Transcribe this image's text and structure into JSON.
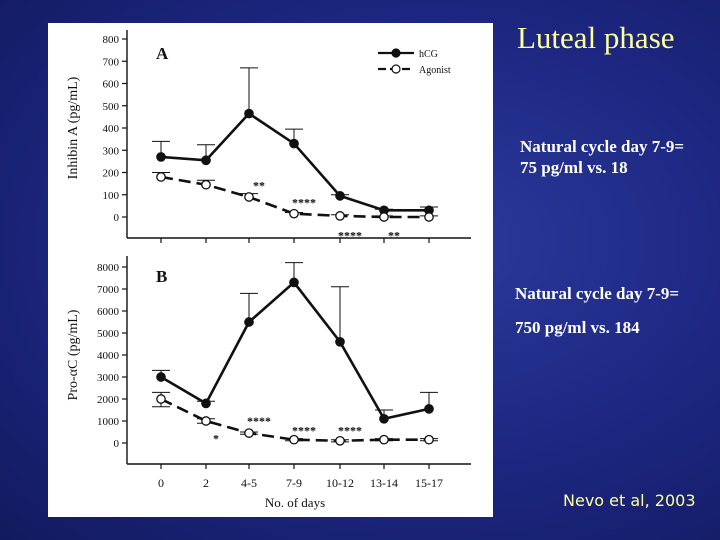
{
  "slide": {
    "title": "Luteal phase",
    "note_1": [
      "Natural cycle day 7-9=",
      "75 pg/ml vs. 18"
    ],
    "note_2": [
      "Natural cycle day 7-9=",
      "750 pg/ml vs. 184"
    ],
    "citation": "Nevo et al, 2003"
  },
  "colors": {
    "background": "#1c2680",
    "title": "#ffff99",
    "notes": "#ffffff",
    "citation": "#ffff99",
    "ink": "#111111"
  },
  "chart_data": [
    {
      "panel_label": "A",
      "type": "line",
      "ylabel": "Inhibin A (pg/mL)",
      "ylim": [
        0,
        800
      ],
      "yticks": [
        0,
        100,
        200,
        300,
        400,
        500,
        600,
        700,
        800
      ],
      "xlabel": "",
      "categories": [
        "0",
        "2",
        "4-5",
        "7-9",
        "10-12",
        "13-14",
        "15-17"
      ],
      "legend": [
        "hCG",
        "Agonist"
      ],
      "legend_position": "top-right",
      "series": [
        {
          "name": "hCG",
          "marker": "filled-circle",
          "line": "solid",
          "values": [
            270,
            255,
            465,
            330,
            95,
            30,
            30
          ],
          "error_upper": [
            340,
            325,
            670,
            395,
            100,
            35,
            45
          ]
        },
        {
          "name": "Agonist",
          "marker": "open-circle",
          "line": "dashed",
          "values": [
            180,
            145,
            90,
            15,
            5,
            0,
            0
          ],
          "error_upper": [
            200,
            165,
            105,
            20,
            10,
            5,
            5
          ]
        }
      ],
      "annotations": [
        {
          "text": "**",
          "category": "4-5",
          "y": 150
        },
        {
          "text": "****",
          "category": "7-9",
          "y": 75
        },
        {
          "text": "****",
          "category": "10-12",
          "y": -75
        },
        {
          "text": "**",
          "category": "13-14",
          "y": -75
        }
      ]
    },
    {
      "panel_label": "B",
      "type": "line",
      "ylabel": "Pro-αC (pg/mL)",
      "ylim": [
        0,
        8000
      ],
      "yticks": [
        0,
        1000,
        2000,
        3000,
        4000,
        5000,
        6000,
        7000,
        8000
      ],
      "xlabel": "No. of days",
      "categories": [
        "0",
        "2",
        "4-5",
        "7-9",
        "10-12",
        "13-14",
        "15-17"
      ],
      "series": [
        {
          "name": "hCG",
          "marker": "filled-circle",
          "line": "solid",
          "values": [
            3000,
            1800,
            5500,
            7300,
            4600,
            1100,
            1550
          ],
          "error_upper": [
            3300,
            1900,
            6800,
            8200,
            7100,
            1500,
            2300
          ]
        },
        {
          "name": "Agonist",
          "marker": "open-circle",
          "line": "dashed",
          "values": [
            2000,
            1000,
            450,
            150,
            100,
            150,
            150
          ],
          "error_upper": [
            2300,
            1100,
            500,
            200,
            150,
            200,
            200
          ],
          "error_lower": [
            1650,
            900,
            400,
            100,
            50,
            100,
            100
          ]
        }
      ],
      "annotations": [
        {
          "text": "*",
          "category": "2",
          "y": 300
        },
        {
          "text": "****",
          "category": "4-5",
          "y": 1100
        },
        {
          "text": "****",
          "category": "7-9",
          "y": 650
        },
        {
          "text": "****",
          "category": "10-12",
          "y": 650
        }
      ]
    }
  ]
}
